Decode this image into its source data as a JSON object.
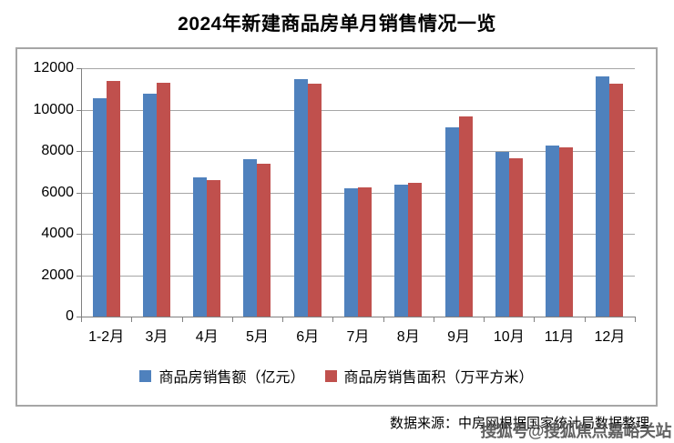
{
  "title": "2024年新建商品房单月销售情况一览",
  "source_text": "数据来源：中房网根据国家统计局数据整理",
  "watermark": "搜狐号@搜狐焦点嘉峪关站",
  "colors": {
    "series_sales_amount": "#4F81BD",
    "series_sales_area": "#C0504D",
    "gridline": "#A6A6A6",
    "axis": "#808080",
    "chart_border": "#A6A6A6"
  },
  "chart_data": {
    "type": "bar",
    "title": "2024年新建商品房单月销售情况一览",
    "categories": [
      "1-2月",
      "3月",
      "4月",
      "5月",
      "6月",
      "7月",
      "8月",
      "9月",
      "10月",
      "11月",
      "12月"
    ],
    "series": [
      {
        "name": "商品房销售额（亿元）",
        "color": "#4F81BD",
        "values": [
          10566,
          10789,
          6712,
          7598,
          11468,
          6197,
          6393,
          9157,
          7975,
          8270,
          11625
        ]
      },
      {
        "name": "商品房销售面积（万平方米）",
        "color": "#C0504D",
        "values": [
          11369,
          11299,
          6584,
          7390,
          11274,
          6233,
          6453,
          9682,
          7646,
          8188,
          11267
        ]
      }
    ],
    "xlabel": "",
    "ylabel": "",
    "ylim": [
      0,
      12000
    ],
    "ytick_step": 2000,
    "grid": true,
    "legend_position": "bottom"
  }
}
